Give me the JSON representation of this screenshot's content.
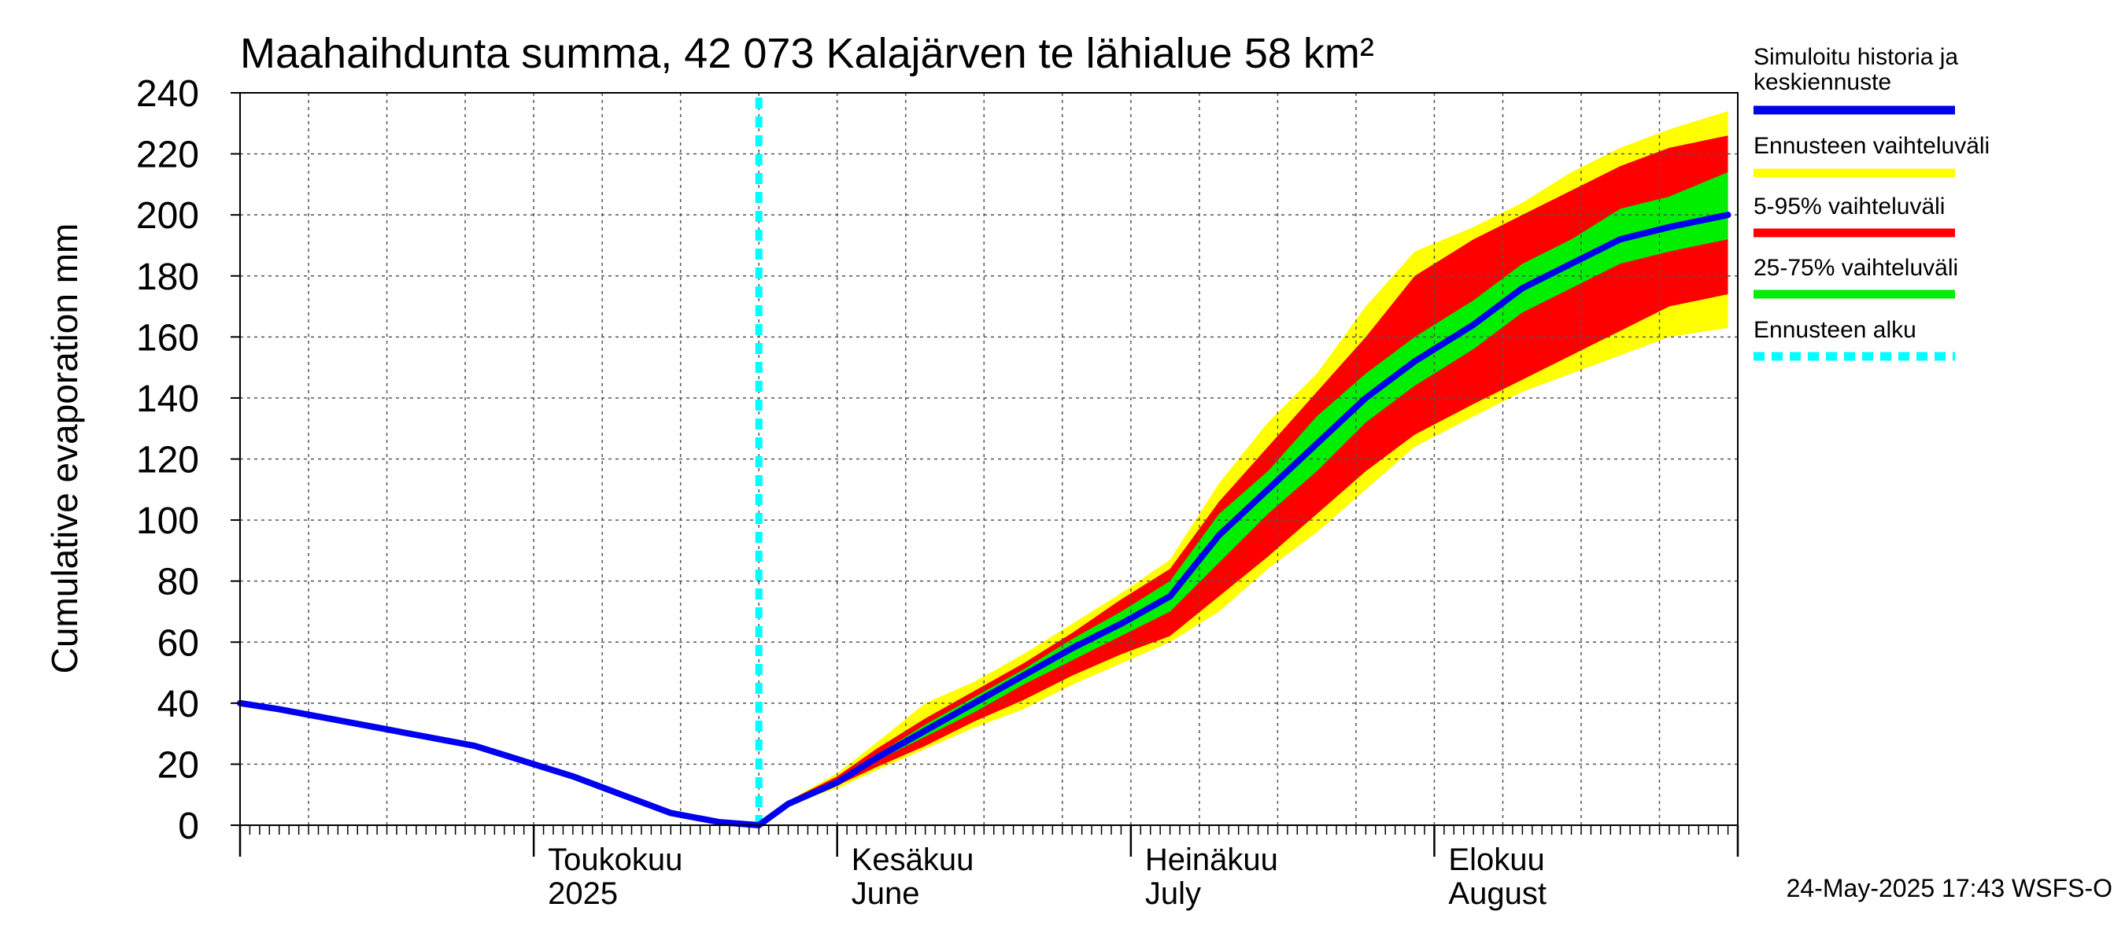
{
  "chart_data": {
    "type": "area",
    "title": "Maahaihdunta summa, 42 073 Kalajärven te lähialue 58 km²",
    "ylabel": "Cumulative evaporation   mm",
    "ylim": [
      0,
      240
    ],
    "y_ticks": [
      0,
      20,
      40,
      60,
      80,
      100,
      120,
      140,
      160,
      180,
      200,
      220,
      240
    ],
    "grid": true,
    "x_range": [
      "2025-04-01",
      "2025-08-31"
    ],
    "month_labels": [
      {
        "date": "2025-05-01",
        "line1": "Toukokuu",
        "line2": "2025"
      },
      {
        "date": "2025-06-01",
        "line1": "Kesäkuu",
        "line2": "June"
      },
      {
        "date": "2025-07-01",
        "line1": "Heinäkuu",
        "line2": "July"
      },
      {
        "date": "2025-08-01",
        "line1": "Elokuu",
        "line2": "August"
      }
    ],
    "forecast_start": "2025-05-24",
    "series": [
      {
        "name": "Simuloitu historia ja keskiennuste",
        "color": "#0000ee",
        "dates": [
          "2025-04-01",
          "2025-04-05",
          "2025-04-10",
          "2025-04-15",
          "2025-04-20",
          "2025-04-25",
          "2025-04-30",
          "2025-05-05",
          "2025-05-10",
          "2025-05-15",
          "2025-05-20",
          "2025-05-24",
          "2025-05-27",
          "2025-06-01",
          "2025-06-05",
          "2025-06-10",
          "2025-06-15",
          "2025-06-20",
          "2025-06-25",
          "2025-06-30",
          "2025-07-05",
          "2025-07-10",
          "2025-07-15",
          "2025-07-20",
          "2025-07-25",
          "2025-07-30",
          "2025-08-05",
          "2025-08-10",
          "2025-08-15",
          "2025-08-20",
          "2025-08-25",
          "2025-08-31"
        ],
        "values": [
          40,
          38,
          35,
          32,
          29,
          26,
          21,
          16,
          10,
          4,
          1,
          0,
          7,
          14,
          22,
          31,
          40,
          49,
          58,
          66,
          75,
          95,
          110,
          125,
          140,
          152,
          164,
          176,
          184,
          192,
          196,
          200
        ]
      },
      {
        "name": "Ennusteen vaihteluväli",
        "color": "#ffff00",
        "dates": [
          "2025-05-24",
          "2025-05-27",
          "2025-06-01",
          "2025-06-05",
          "2025-06-10",
          "2025-06-15",
          "2025-06-20",
          "2025-06-25",
          "2025-06-30",
          "2025-07-05",
          "2025-07-10",
          "2025-07-15",
          "2025-07-20",
          "2025-07-25",
          "2025-07-30",
          "2025-08-05",
          "2025-08-10",
          "2025-08-15",
          "2025-08-20",
          "2025-08-25",
          "2025-08-31"
        ],
        "low": [
          0,
          7,
          12,
          18,
          25,
          32,
          38,
          46,
          53,
          60,
          70,
          84,
          96,
          110,
          124,
          134,
          142,
          148,
          154,
          160,
          163
        ],
        "high": [
          0,
          8,
          17,
          27,
          40,
          47,
          56,
          66,
          76,
          87,
          112,
          132,
          148,
          170,
          188,
          196,
          204,
          214,
          222,
          228,
          234
        ]
      },
      {
        "name": "5-95% vaihteluväli",
        "color": "#ff0000",
        "dates": [
          "2025-05-24",
          "2025-05-27",
          "2025-06-01",
          "2025-06-05",
          "2025-06-10",
          "2025-06-15",
          "2025-06-20",
          "2025-06-25",
          "2025-06-30",
          "2025-07-05",
          "2025-07-10",
          "2025-07-15",
          "2025-07-20",
          "2025-07-25",
          "2025-07-30",
          "2025-08-05",
          "2025-08-10",
          "2025-08-15",
          "2025-08-20",
          "2025-08-25",
          "2025-08-31"
        ],
        "low": [
          0,
          7,
          13,
          19,
          26,
          34,
          41,
          49,
          56,
          62,
          75,
          88,
          102,
          116,
          128,
          138,
          146,
          154,
          162,
          170,
          174
        ],
        "high": [
          0,
          8,
          16,
          25,
          35,
          44,
          53,
          63,
          74,
          84,
          106,
          124,
          142,
          160,
          180,
          192,
          200,
          208,
          216,
          222,
          226
        ]
      },
      {
        "name": "25-75% vaihteluväli",
        "color": "#00ee00",
        "dates": [
          "2025-05-24",
          "2025-05-27",
          "2025-06-01",
          "2025-06-05",
          "2025-06-10",
          "2025-06-15",
          "2025-06-20",
          "2025-06-25",
          "2025-06-30",
          "2025-07-05",
          "2025-07-10",
          "2025-07-15",
          "2025-07-20",
          "2025-07-25",
          "2025-07-30",
          "2025-08-05",
          "2025-08-10",
          "2025-08-15",
          "2025-08-20",
          "2025-08-25",
          "2025-08-31"
        ],
        "low": [
          0,
          7,
          14,
          21,
          29,
          37,
          46,
          54,
          62,
          70,
          86,
          102,
          116,
          132,
          144,
          156,
          168,
          176,
          184,
          188,
          192
        ],
        "high": [
          0,
          7,
          15,
          23,
          33,
          42,
          51,
          61,
          70,
          80,
          102,
          116,
          134,
          148,
          160,
          172,
          184,
          192,
          202,
          206,
          214
        ]
      },
      {
        "name": "Ennusteen alku",
        "color": "#00ffff"
      }
    ],
    "legend_position": "right"
  },
  "footer": "24-May-2025 17:43 WSFS-O"
}
